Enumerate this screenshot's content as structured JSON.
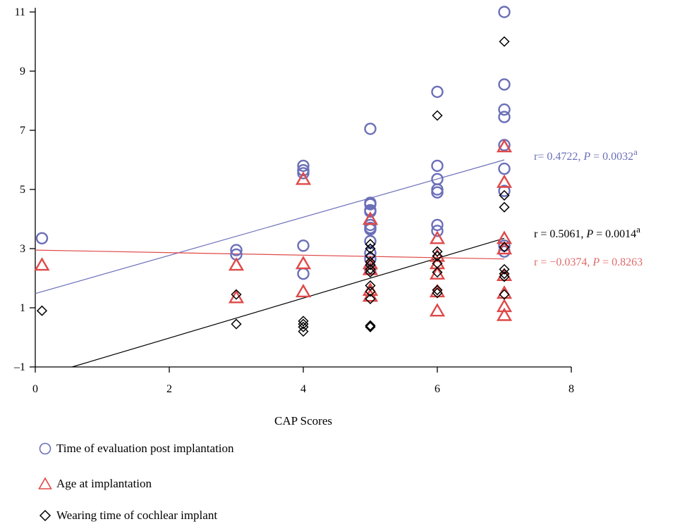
{
  "chart_data": {
    "type": "scatter",
    "xlabel": "CAP Scores",
    "ylabel": "",
    "xlim": [
      0,
      8
    ],
    "ylim": [
      -1,
      11
    ],
    "xticks": [
      "0",
      "2",
      "4",
      "6",
      "8"
    ],
    "yticks": [
      "–1",
      "1",
      "3",
      "5",
      "7",
      "9",
      "11"
    ],
    "grid": false,
    "legend_position": "bottom-left",
    "series": [
      {
        "name": "Time of evaluation post implantation",
        "marker": "circle",
        "color": "#6b6fb8",
        "points": [
          [
            0.1,
            3.35
          ],
          [
            3,
            2.95
          ],
          [
            3,
            2.8
          ],
          [
            4,
            5.8
          ],
          [
            4,
            5.65
          ],
          [
            4,
            5.55
          ],
          [
            4,
            3.1
          ],
          [
            4,
            2.15
          ],
          [
            5,
            7.05
          ],
          [
            5,
            4.55
          ],
          [
            5,
            4.5
          ],
          [
            5,
            4.3
          ],
          [
            5,
            4.25
          ],
          [
            5,
            3.8
          ],
          [
            5,
            3.7
          ],
          [
            5,
            3.65
          ],
          [
            5,
            3.25
          ],
          [
            5,
            2.85
          ],
          [
            5,
            2.65
          ],
          [
            5,
            2.3
          ],
          [
            6,
            8.3
          ],
          [
            6,
            5.8
          ],
          [
            6,
            5.35
          ],
          [
            6,
            5.0
          ],
          [
            6,
            4.9
          ],
          [
            6,
            3.8
          ],
          [
            6,
            3.6
          ],
          [
            7,
            11.0
          ],
          [
            7,
            8.55
          ],
          [
            7,
            7.7
          ],
          [
            7,
            7.45
          ],
          [
            7,
            6.5
          ],
          [
            7,
            5.7
          ],
          [
            7,
            4.95
          ],
          [
            7,
            3.1
          ],
          [
            7,
            2.9
          ]
        ],
        "fit": {
          "x": [
            0,
            7
          ],
          "y": [
            1.48,
            6.0
          ]
        },
        "annotation": {
          "prefix": "r= 0.4722, ",
          "p_label": "P",
          "p_value": " = 0.0032",
          "sup": "a"
        }
      },
      {
        "name": "Age at implantation",
        "marker": "triangle",
        "color": "#e04848",
        "points": [
          [
            0.1,
            2.45
          ],
          [
            3,
            2.45
          ],
          [
            3,
            1.35
          ],
          [
            4,
            5.35
          ],
          [
            4,
            2.5
          ],
          [
            4,
            1.55
          ],
          [
            5,
            4.0
          ],
          [
            5,
            2.5
          ],
          [
            5,
            2.3
          ],
          [
            5,
            1.6
          ],
          [
            5,
            1.4
          ],
          [
            6,
            3.35
          ],
          [
            6,
            2.75
          ],
          [
            6,
            2.5
          ],
          [
            6,
            2.15
          ],
          [
            6,
            1.55
          ],
          [
            6,
            0.9
          ],
          [
            7,
            6.45
          ],
          [
            7,
            5.25
          ],
          [
            7,
            3.35
          ],
          [
            7,
            3.0
          ],
          [
            7,
            2.1
          ],
          [
            7,
            1.5
          ],
          [
            7,
            1.05
          ],
          [
            7,
            0.75
          ]
        ],
        "fit": {
          "x": [
            0,
            7
          ],
          "y": [
            2.95,
            2.65
          ]
        },
        "annotation": {
          "prefix": "r = −0.0374, ",
          "p_label": "P",
          "p_value": " = 0.8263",
          "sup": ""
        }
      },
      {
        "name": "Wearing time of cochlear implant",
        "marker": "diamond",
        "color": "#000000",
        "points": [
          [
            0.1,
            0.9
          ],
          [
            3,
            1.45
          ],
          [
            3,
            0.45
          ],
          [
            4,
            0.55
          ],
          [
            4,
            0.45
          ],
          [
            4,
            0.35
          ],
          [
            4,
            0.2
          ],
          [
            5,
            3.15
          ],
          [
            5,
            3.0
          ],
          [
            5,
            2.75
          ],
          [
            5,
            2.55
          ],
          [
            5,
            2.45
          ],
          [
            5,
            2.3
          ],
          [
            5,
            2.2
          ],
          [
            5,
            1.75
          ],
          [
            5,
            1.55
          ],
          [
            5,
            1.3
          ],
          [
            5,
            0.4
          ],
          [
            5,
            0.35
          ],
          [
            6,
            7.5
          ],
          [
            6,
            2.9
          ],
          [
            6,
            2.75
          ],
          [
            6,
            2.5
          ],
          [
            6,
            2.2
          ],
          [
            6,
            1.6
          ],
          [
            6,
            1.5
          ],
          [
            7,
            10.0
          ],
          [
            7,
            4.8
          ],
          [
            7,
            4.4
          ],
          [
            7,
            3.05
          ],
          [
            7,
            2.3
          ],
          [
            7,
            2.15
          ],
          [
            7,
            2.05
          ],
          [
            7,
            1.45
          ]
        ],
        "fit": {
          "x": [
            0.55,
            7
          ],
          "y": [
            -1.0,
            3.35
          ]
        },
        "annotation": {
          "prefix": "r = 0.5061, ",
          "p_label": "P",
          "p_value": " = 0.0014",
          "sup": "a"
        }
      }
    ]
  },
  "legend": {
    "items": [
      {
        "label": "Time of evaluation post implantation",
        "icon": "circle-icon"
      },
      {
        "label": "Age at implantation",
        "icon": "triangle-icon"
      },
      {
        "label": "Wearing time of cochlear implant",
        "icon": "diamond-icon"
      }
    ]
  }
}
